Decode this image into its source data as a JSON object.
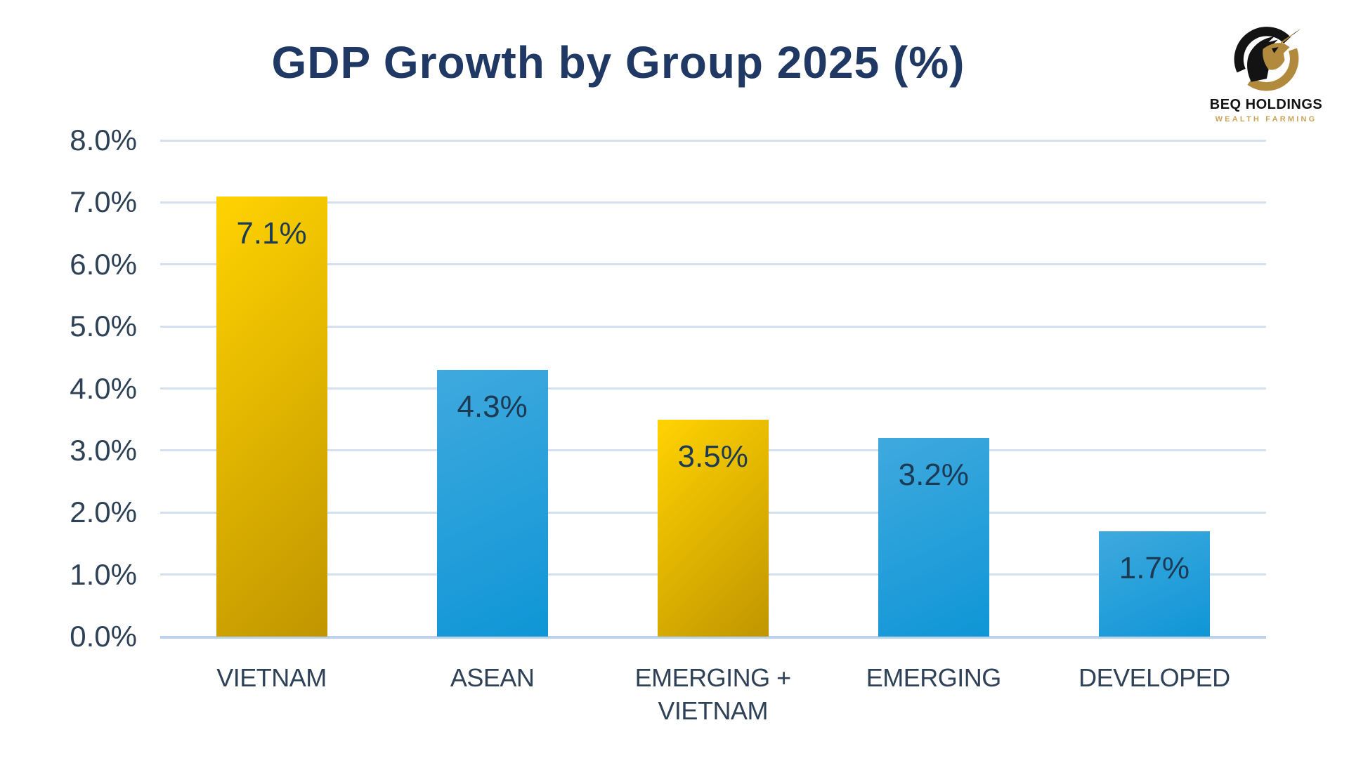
{
  "chart_data": {
    "type": "bar",
    "title": "GDP Growth by Group 2025 (%)",
    "categories": [
      "VIETNAM",
      "ASEAN",
      "EMERGING + VIETNAM",
      "EMERGING",
      "DEVELOPED"
    ],
    "values": [
      7.1,
      4.3,
      3.5,
      3.2,
      1.7
    ],
    "value_labels": [
      "7.1%",
      "4.3%",
      "3.5%",
      "3.2%",
      "1.7%"
    ],
    "bar_palette": [
      "gold",
      "blue",
      "gold",
      "blue",
      "blue"
    ],
    "xlabel": "",
    "ylabel": "",
    "ylim": [
      0,
      8
    ],
    "grid": true,
    "legend": "none",
    "yticks": [
      {
        "value": 8,
        "label": "8.0%"
      },
      {
        "value": 7,
        "label": "7.0%"
      },
      {
        "value": 6,
        "label": "6.0%"
      },
      {
        "value": 5,
        "label": "5.0%"
      },
      {
        "value": 4,
        "label": "4.0%"
      },
      {
        "value": 3,
        "label": "3.0%"
      },
      {
        "value": 2,
        "label": "2.0%"
      },
      {
        "value": 1,
        "label": "1.0%"
      },
      {
        "value": 0,
        "label": "0.0%"
      }
    ]
  },
  "logo": {
    "company": "BEQ HOLDINGS",
    "tagline": "WEALTH FARMING"
  },
  "colors": {
    "title_text": "#1F3864",
    "axis_text": "#2E4156",
    "value_text": "#1D3A55",
    "gridline": "#D3E0F0",
    "baseline": "#BCD2E8",
    "bar_gold_start": "#FFD301",
    "bar_gold_end": "#C09500",
    "bar_blue_start": "#3FA9DE",
    "bar_blue_end": "#0F96D6",
    "logo_black": "#131313",
    "logo_gold": "#B18A3D",
    "logo_tagline": "#C9A45C"
  }
}
